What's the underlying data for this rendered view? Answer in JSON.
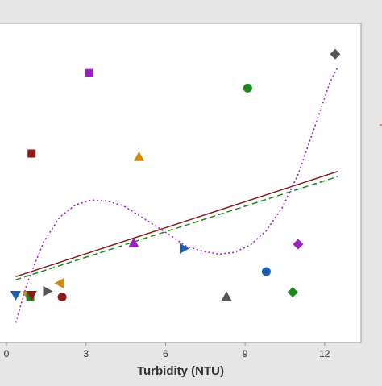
{
  "chart_data": {
    "type": "scatter",
    "title": "",
    "xlabel": "Turbidity (NTU)",
    "ylabel": "",
    "xlim": [
      0,
      13.1
    ],
    "ylim": [
      0,
      1
    ],
    "x_ticks": [
      0,
      3,
      6,
      9,
      12
    ],
    "grid": false,
    "colors": {
      "page_background": "#e6e6e6",
      "plot_background": "#ffffff",
      "axis": "#999999",
      "text": "#333333"
    },
    "points": [
      {
        "x": 3.1,
        "y": 0.897,
        "marker": "square",
        "color": "#9b1fc2"
      },
      {
        "x": 12.4,
        "y": 0.971,
        "marker": "diamond",
        "color": "#555555"
      },
      {
        "x": 9.1,
        "y": 0.838,
        "marker": "circle",
        "color": "#1a8a1a"
      },
      {
        "x": 0.95,
        "y": 0.582,
        "marker": "square",
        "color": "#8b1a1a"
      },
      {
        "x": 5.0,
        "y": 0.57,
        "marker": "triangle-up",
        "color": "#d4890a"
      },
      {
        "x": 4.8,
        "y": 0.233,
        "marker": "triangle-up",
        "color": "#9b1fc2"
      },
      {
        "x": 6.7,
        "y": 0.21,
        "marker": "triangle-right",
        "color": "#1a5fb4"
      },
      {
        "x": 11.0,
        "y": 0.227,
        "marker": "diamond",
        "color": "#9b1fc2"
      },
      {
        "x": 9.8,
        "y": 0.12,
        "marker": "circle",
        "color": "#1a5fb4"
      },
      {
        "x": 10.8,
        "y": 0.039,
        "marker": "diamond",
        "color": "#1a8a1a"
      },
      {
        "x": 8.3,
        "y": 0.023,
        "marker": "triangle-up",
        "color": "#555555"
      },
      {
        "x": 2.1,
        "y": 0.02,
        "marker": "circle",
        "color": "#8b1a1a"
      },
      {
        "x": 2.0,
        "y": 0.074,
        "marker": "triangle-left",
        "color": "#d4890a"
      },
      {
        "x": 1.55,
        "y": 0.043,
        "marker": "triangle-right",
        "color": "#555555"
      },
      {
        "x": 0.35,
        "y": 0.027,
        "marker": "triangle-down",
        "color": "#1a5fb4"
      },
      {
        "x": 0.8,
        "y": 0.027,
        "marker": "triangle-down",
        "color": "#d4890a"
      },
      {
        "x": 0.9,
        "y": 0.02,
        "marker": "square",
        "color": "#1a8a1a"
      },
      {
        "x": 0.95,
        "y": 0.027,
        "marker": "triangle-down",
        "color": "#8b1a1a"
      }
    ],
    "fits": [
      {
        "kind": "linear",
        "style": "solid",
        "color": "#8b1a1a",
        "x": [
          0.35,
          12.5
        ],
        "y": [
          0.1,
          0.512
        ]
      },
      {
        "kind": "linear",
        "style": "dashed",
        "color": "#1a8a1a",
        "x": [
          0.35,
          12.5
        ],
        "y": [
          0.088,
          0.492
        ]
      },
      {
        "kind": "cubic",
        "style": "dotted",
        "color": "#9b1fc2",
        "x": [
          0.35,
          0.8,
          1.4,
          2.0,
          2.6,
          3.2,
          3.8,
          4.4,
          5.0,
          5.6,
          6.2,
          6.8,
          7.4,
          8.0,
          8.6,
          9.2,
          9.8,
          10.4,
          11.0,
          11.6,
          12.2,
          12.5
        ],
        "y": [
          -0.08,
          0.08,
          0.235,
          0.332,
          0.381,
          0.4,
          0.396,
          0.378,
          0.34,
          0.3,
          0.26,
          0.218,
          0.2,
          0.188,
          0.195,
          0.224,
          0.28,
          0.37,
          0.5,
          0.678,
          0.86,
          0.922
        ]
      }
    ]
  }
}
